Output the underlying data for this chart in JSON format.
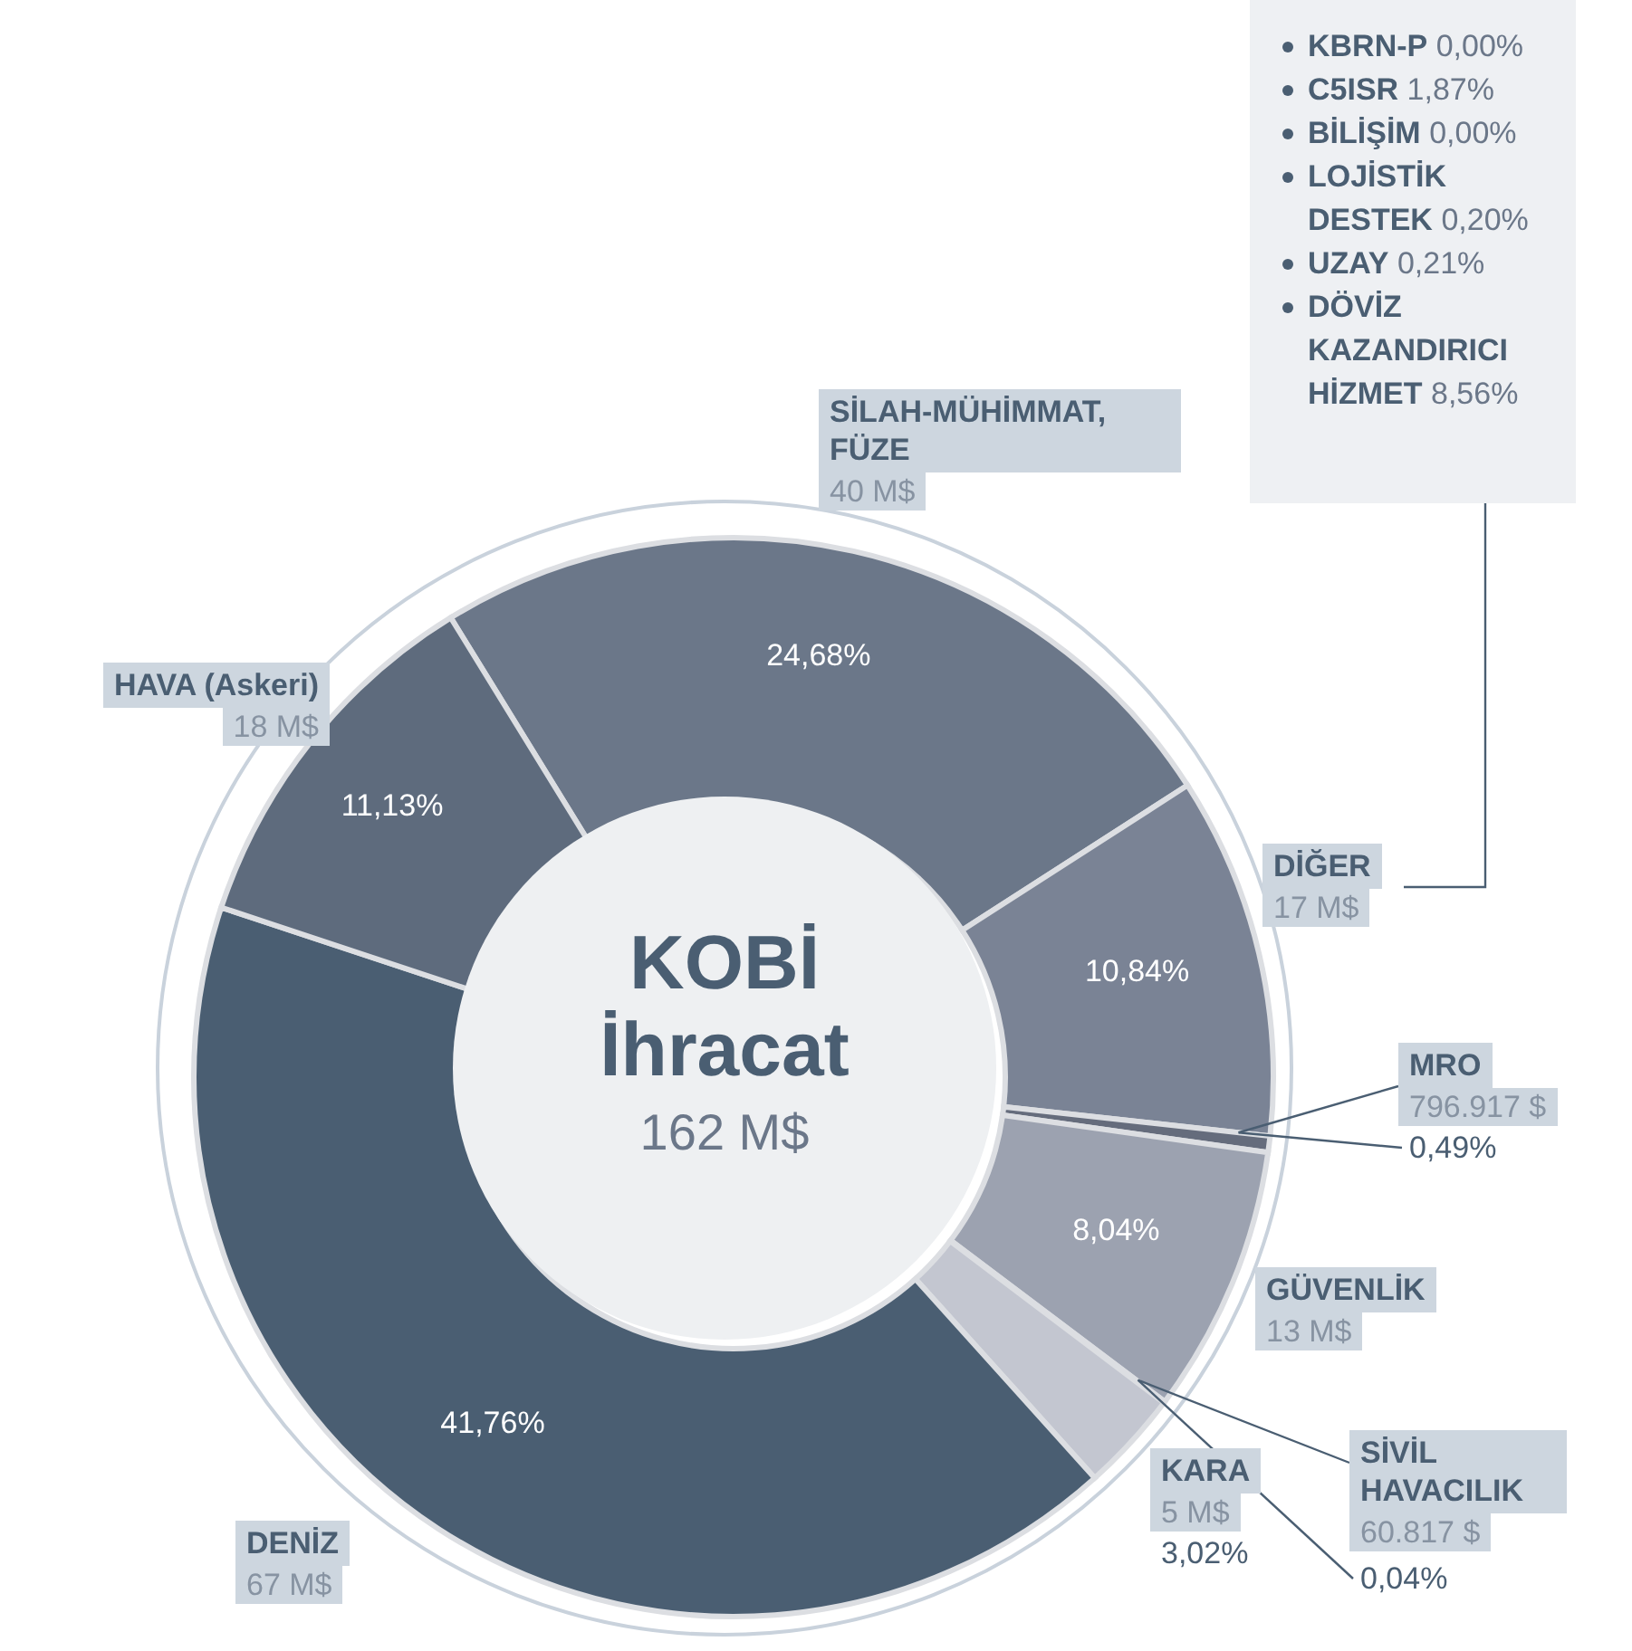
{
  "chart_data": {
    "type": "donut",
    "title": "KOBİ İhracat",
    "subtitle": "162 M$",
    "categories": [
      "SİLAH-MÜHİMMAT, FÜZE",
      "DİĞER",
      "MRO",
      "GÜVENLİK",
      "SİVİL HAVACILIK",
      "KARA",
      "DENİZ",
      "HAVA (Askeri)"
    ],
    "values": [
      24.68,
      10.84,
      0.49,
      8.04,
      0.04,
      3.02,
      41.76,
      11.13
    ],
    "value_labels": [
      "24,68%",
      "10,84%",
      "0,49%",
      "8,04%",
      "0,04%",
      "3,02%",
      "41,76%",
      "11,13%"
    ],
    "colors": [
      "#6b7789",
      "#7a8395",
      "#656c7c",
      "#9ca2b0",
      "#b9bcc6",
      "#c3c6d0",
      "#4a5e72",
      "#5e6b7d"
    ],
    "annotations": [
      {
        "text": "40 M$",
        "x": "SİLAH-MÜHİMMAT, FÜZE"
      },
      {
        "text": "17 M$",
        "x": "DİĞER"
      },
      {
        "text": "796.917 $",
        "x": "MRO"
      },
      {
        "text": "13 M$",
        "x": "GÜVENLİK"
      },
      {
        "text": "60.817 $",
        "x": "SİVİL HAVACILIK"
      },
      {
        "text": "5 M$",
        "x": "KARA"
      },
      {
        "text": "67 M$",
        "x": "DENİZ"
      },
      {
        "text": "18 M$",
        "x": "HAVA (Askeri)"
      },
      "KBRN-P 0,00%",
      "C5ISR 1,87%",
      "BİLİŞİM 0,00%",
      "LOJİSTİK DESTEK 0,20%",
      "UZAY 0,21%",
      "DÖVİZ KAZANDIRICI HİZMET 8,56%"
    ]
  }
}
